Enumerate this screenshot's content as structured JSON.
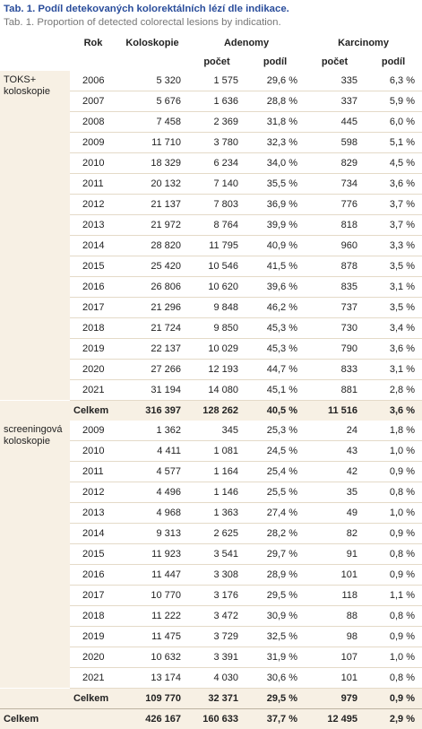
{
  "caption": {
    "title": "Tab. 1. Podíl detekovaných kolorektálních lézí dle indikace.",
    "subtitle": "Tab. 1. Proportion of detected colorectal lesions by indication."
  },
  "headers": {
    "rok": "Rok",
    "kolo": "Koloskopie",
    "aden": "Adenomy",
    "karc": "Karcinomy",
    "pocet": "počet",
    "podil": "podíl"
  },
  "groups": [
    {
      "label": "TOKS+ koloskopie",
      "rows": [
        [
          "2006",
          "5 320",
          "1 575",
          "29,6 %",
          "335",
          "6,3 %"
        ],
        [
          "2007",
          "5 676",
          "1 636",
          "28,8 %",
          "337",
          "5,9 %"
        ],
        [
          "2008",
          "7 458",
          "2 369",
          "31,8 %",
          "445",
          "6,0 %"
        ],
        [
          "2009",
          "11 710",
          "3 780",
          "32,3 %",
          "598",
          "5,1 %"
        ],
        [
          "2010",
          "18 329",
          "6 234",
          "34,0 %",
          "829",
          "4,5 %"
        ],
        [
          "2011",
          "20 132",
          "7 140",
          "35,5 %",
          "734",
          "3,6 %"
        ],
        [
          "2012",
          "21 137",
          "7 803",
          "36,9 %",
          "776",
          "3,7 %"
        ],
        [
          "2013",
          "21 972",
          "8 764",
          "39,9 %",
          "818",
          "3,7 %"
        ],
        [
          "2014",
          "28 820",
          "11 795",
          "40,9 %",
          "960",
          "3,3 %"
        ],
        [
          "2015",
          "25 420",
          "10 546",
          "41,5 %",
          "878",
          "3,5 %"
        ],
        [
          "2016",
          "26 806",
          "10 620",
          "39,6 %",
          "835",
          "3,1 %"
        ],
        [
          "2017",
          "21 296",
          "9 848",
          "46,2 %",
          "737",
          "3,5 %"
        ],
        [
          "2018",
          "21 724",
          "9 850",
          "45,3 %",
          "730",
          "3,4 %"
        ],
        [
          "2019",
          "22 137",
          "10 029",
          "45,3 %",
          "790",
          "3,6 %"
        ],
        [
          "2020",
          "27 266",
          "12 193",
          "44,7 %",
          "833",
          "3,1 %"
        ],
        [
          "2021",
          "31 194",
          "14 080",
          "45,1 %",
          "881",
          "2,8 %"
        ]
      ],
      "subtotal": [
        "Celkem",
        "316 397",
        "128 262",
        "40,5 %",
        "11 516",
        "3,6 %"
      ]
    },
    {
      "label": "screeningová koloskopie",
      "rows": [
        [
          "2009",
          "1 362",
          "345",
          "25,3 %",
          "24",
          "1,8 %"
        ],
        [
          "2010",
          "4 411",
          "1 081",
          "24,5 %",
          "43",
          "1,0 %"
        ],
        [
          "2011",
          "4 577",
          "1 164",
          "25,4 %",
          "42",
          "0,9 %"
        ],
        [
          "2012",
          "4 496",
          "1 146",
          "25,5 %",
          "35",
          "0,8 %"
        ],
        [
          "2013",
          "4 968",
          "1 363",
          "27,4 %",
          "49",
          "1,0 %"
        ],
        [
          "2014",
          "9 313",
          "2 625",
          "28,2 %",
          "82",
          "0,9 %"
        ],
        [
          "2015",
          "11 923",
          "3 541",
          "29,7 %",
          "91",
          "0,8 %"
        ],
        [
          "2016",
          "11 447",
          "3 308",
          "28,9 %",
          "101",
          "0,9 %"
        ],
        [
          "2017",
          "10 770",
          "3 176",
          "29,5 %",
          "118",
          "1,1 %"
        ],
        [
          "2018",
          "11 222",
          "3 472",
          "30,9 %",
          "88",
          "0,8 %"
        ],
        [
          "2019",
          "11 475",
          "3 729",
          "32,5 %",
          "98",
          "0,9 %"
        ],
        [
          "2020",
          "10 632",
          "3 391",
          "31,9 %",
          "107",
          "1,0 %"
        ],
        [
          "2021",
          "13 174",
          "4 030",
          "30,6 %",
          "101",
          "0,8 %"
        ]
      ],
      "subtotal": [
        "Celkem",
        "109 770",
        "32 371",
        "29,5 %",
        "979",
        "0,9 %"
      ]
    }
  ],
  "total": [
    "Celkem",
    "426 167",
    "160 633",
    "37,7 %",
    "12 495",
    "2,9 %"
  ]
}
